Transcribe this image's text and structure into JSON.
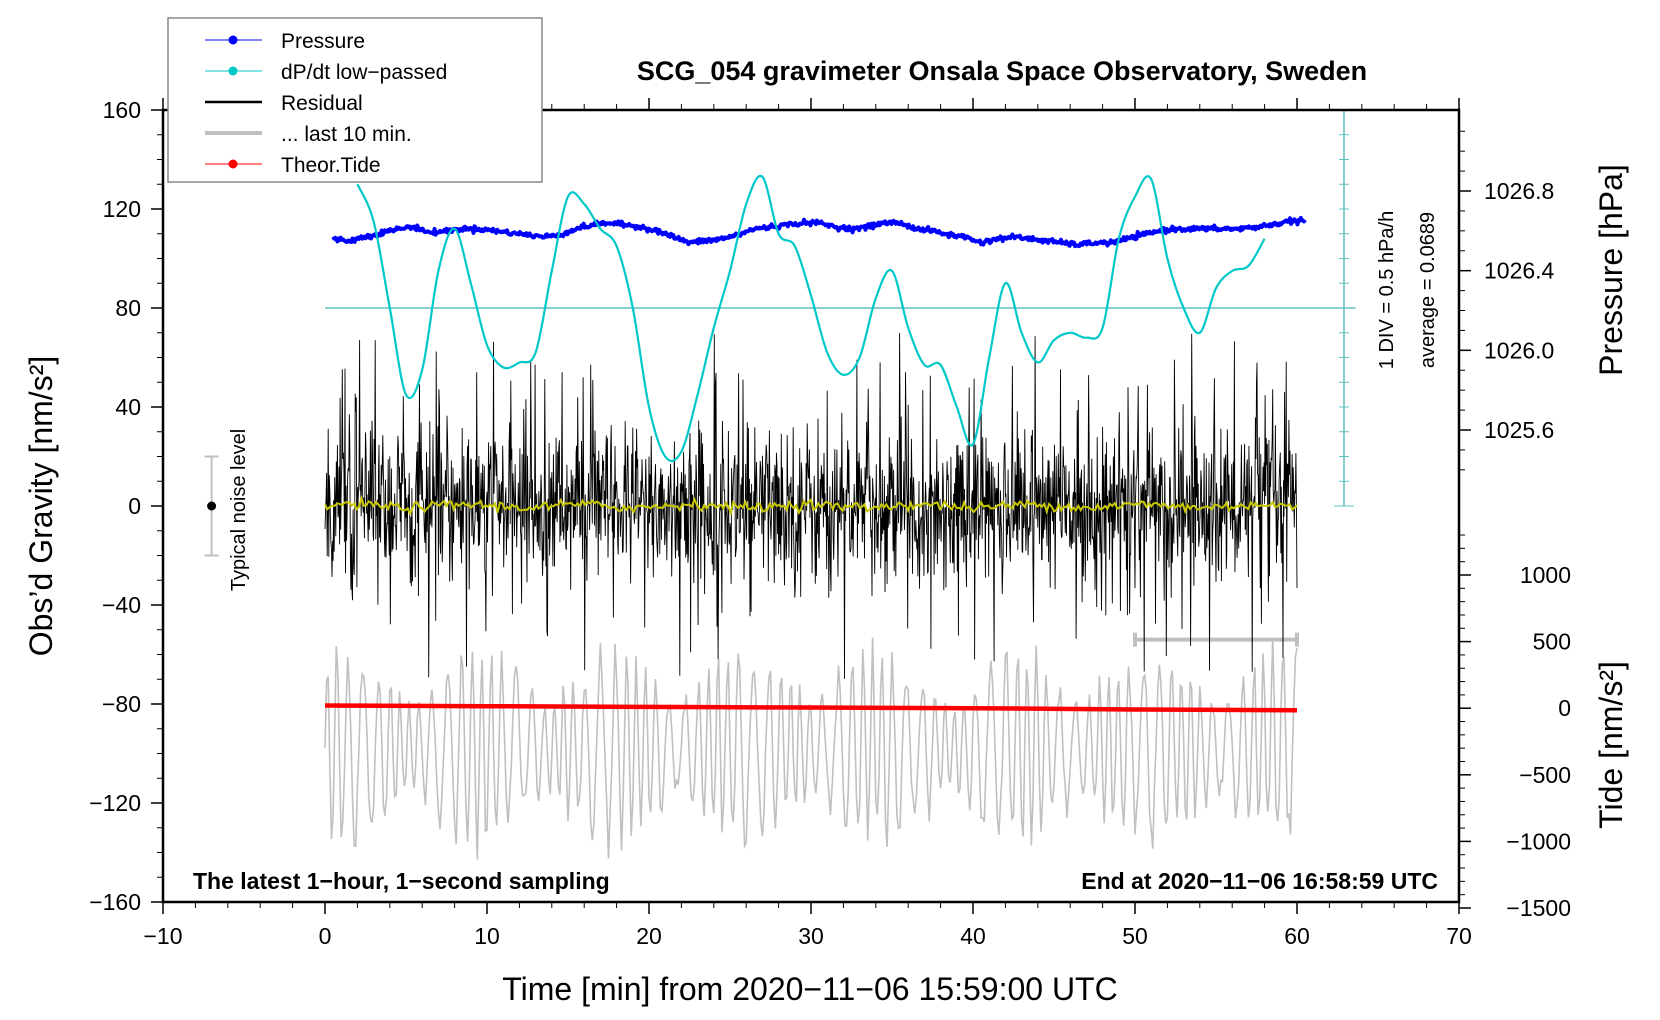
{
  "chart_data": {
    "type": "line",
    "title": "SCG_054 gravimeter Onsala Space Observatory, Sweden",
    "xlabel": "Time [min] from 2020−11−06 15:59:00 UTC",
    "ylabel": "Obs’d Gravity [nm/s²]",
    "ylabel_right_top": "Pressure [hPa]",
    "ylabel_right_bottom": "Tide [nm/s²]",
    "xlim": [
      -10,
      70
    ],
    "ylim": [
      -160,
      160
    ],
    "pressure_lim": [
      1025.2,
      1027.2
    ],
    "tide_lim": [
      -1500,
      1500
    ],
    "x_ticks": [
      -10,
      0,
      10,
      20,
      30,
      40,
      50,
      60,
      70
    ],
    "x_tick_labels": [
      "−10",
      "0",
      "10",
      "20",
      "30",
      "40",
      "50",
      "60",
      "70"
    ],
    "y_ticks": [
      160,
      120,
      80,
      40,
      0,
      -40,
      -80,
      -120,
      -160
    ],
    "y_tick_labels": [
      "160",
      "120",
      "80",
      "40",
      "0",
      "−40",
      "−80",
      "−120",
      "−160"
    ],
    "pressure_ticks": [
      1026.8,
      1026.4,
      1026.0,
      1025.6
    ],
    "pressure_tick_labels": [
      "1026.8",
      "1026.4",
      "1026.0",
      "1025.6"
    ],
    "tide_ticks": [
      1000,
      500,
      0,
      -500,
      -1000,
      -1500
    ],
    "tide_tick_labels": [
      "1000",
      "500",
      "0",
      "−500",
      "−1000",
      "−1500"
    ],
    "annotations": {
      "bottom_left": "The latest 1−hour, 1−second sampling",
      "bottom_right": "End at 2020−11−06 16:58:59 UTC",
      "noise_label": "Typical noise level",
      "div_label": "1 DIV = 0.5 hPa/h",
      "average_label": "average = 0.0689"
    },
    "noise_level": {
      "x": -7,
      "center": 0,
      "half_range": 20
    },
    "dpdt_reference_level": 80,
    "dpdt_scale": {
      "div_hpa_per_h": 0.5,
      "average": 0.0689
    },
    "last10_bar": {
      "x_start": 50,
      "x_end": 60,
      "y": -54
    },
    "legend": {
      "position": "top-left",
      "entries": [
        {
          "label": "Pressure",
          "color": "#0000ff",
          "marker": true
        },
        {
          "label": "dP/dt low−passed",
          "color": "#00c8c8",
          "marker": true
        },
        {
          "label": "Residual",
          "color": "#000000",
          "marker": false
        },
        {
          "label": "... last 10 min.",
          "color": "#c0c0c0",
          "marker": false
        },
        {
          "label": "Theor.Tide",
          "color": "#ff0000",
          "marker": true
        }
      ]
    },
    "series": [
      {
        "name": "Pressure",
        "axis": "pressure",
        "color": "#0000ff",
        "x": [
          0.5,
          1.5,
          2.5,
          3.5,
          4.5,
          5.5,
          6.5,
          7.5,
          8.5,
          9.5,
          10.5,
          11.5,
          12.5,
          13.5,
          14.5,
          15.5,
          16.5,
          17.5,
          18.5,
          19.5,
          20.5,
          21.5,
          22.5,
          23.5,
          24.5,
          25.5,
          26.5,
          27.5,
          28.5,
          29.5,
          30.5,
          31.5,
          32.5,
          33.5,
          34.5,
          35.5,
          36.5,
          37.5,
          38.5,
          39.5,
          40.5,
          41.5,
          42.5,
          43.5,
          44.5,
          45.5,
          46.5,
          47.5,
          48.5,
          49.5,
          50.5,
          51.5,
          52.5,
          53.5,
          54.5,
          55.5,
          56.5,
          57.5,
          58.5,
          59.5,
          60.5
        ],
        "values": [
          1026.56,
          1026.55,
          1026.57,
          1026.59,
          1026.61,
          1026.62,
          1026.59,
          1026.6,
          1026.61,
          1026.61,
          1026.6,
          1026.59,
          1026.58,
          1026.57,
          1026.58,
          1026.61,
          1026.63,
          1026.64,
          1026.63,
          1026.62,
          1026.6,
          1026.57,
          1026.54,
          1026.55,
          1026.56,
          1026.58,
          1026.61,
          1026.62,
          1026.63,
          1026.64,
          1026.64,
          1026.62,
          1026.61,
          1026.62,
          1026.64,
          1026.64,
          1026.61,
          1026.6,
          1026.58,
          1026.57,
          1026.54,
          1026.56,
          1026.57,
          1026.56,
          1026.55,
          1026.54,
          1026.53,
          1026.54,
          1026.54,
          1026.56,
          1026.58,
          1026.6,
          1026.61,
          1026.61,
          1026.61,
          1026.61,
          1026.61,
          1026.62,
          1026.63,
          1026.65,
          1026.65
        ]
      },
      {
        "name": "dP/dt low-passed",
        "axis": "gravity_scaled",
        "color": "#00c8c8",
        "x": [
          2.0,
          3.0,
          4.0,
          5.0,
          6.0,
          7.0,
          8.0,
          9.0,
          10.0,
          11.0,
          12.0,
          13.0,
          14.0,
          15.0,
          16.0,
          17.0,
          18.0,
          19.0,
          20.0,
          21.0,
          22.0,
          23.0,
          24.0,
          25.0,
          26.0,
          27.0,
          28.0,
          29.0,
          30.0,
          31.0,
          32.0,
          33.0,
          34.0,
          35.0,
          36.0,
          37.0,
          38.0,
          39.0,
          40.0,
          41.0,
          42.0,
          43.0,
          44.0,
          45.0,
          46.0,
          47.0,
          48.0,
          49.0,
          50.0,
          51.0,
          52.0,
          53.0,
          54.0,
          55.0,
          56.0,
          57.0,
          58.0
        ],
        "values": [
          130,
          115,
          80,
          45,
          55,
          95,
          112,
          90,
          65,
          56,
          58,
          62,
          95,
          125,
          122,
          112,
          105,
          80,
          40,
          20,
          22,
          45,
          72,
          95,
          122,
          133,
          110,
          105,
          85,
          62,
          53,
          60,
          84,
          95,
          72,
          57,
          57,
          40,
          25,
          60,
          90,
          70,
          58,
          67,
          70,
          68,
          72,
          108,
          125,
          132,
          100,
          80,
          70,
          88,
          95,
          97,
          108
        ]
      },
      {
        "name": "Residual",
        "axis": "gravity",
        "color": "#000000",
        "x_range": [
          0,
          60
        ],
        "sampling_s": 1,
        "amplitude_typical": 30,
        "amplitude_peak": 70
      },
      {
        "name": "Residual smoothed",
        "axis": "gravity",
        "color": "#c8c800",
        "x_range": [
          0,
          60
        ],
        "level": 0
      },
      {
        "name": "... last 10 min.",
        "axis": "tide",
        "color": "#c0c0c0",
        "x_range": [
          0,
          60
        ],
        "amplitude_typical": 700,
        "amplitude_peak": 1500
      },
      {
        "name": "Theor.Tide",
        "axis": "tide",
        "color": "#ff0000",
        "x": [
          0,
          10,
          20,
          30,
          40,
          50,
          60
        ],
        "values": [
          20,
          15,
          10,
          5,
          0,
          -10,
          -15
        ]
      }
    ]
  }
}
